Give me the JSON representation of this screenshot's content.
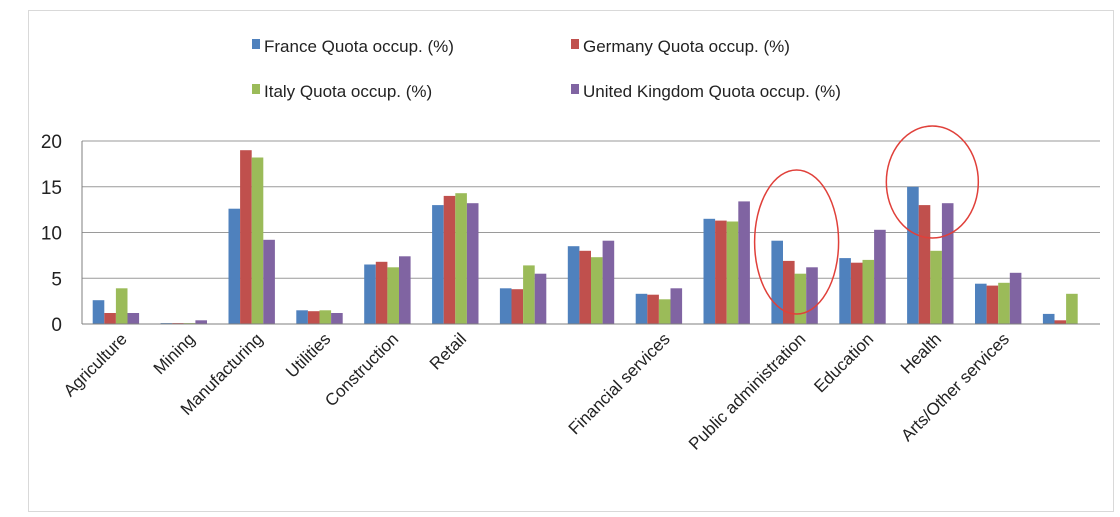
{
  "chart_data": {
    "type": "bar",
    "categories": [
      "Agriculture",
      "Mining",
      "Manufacturing",
      "Utilities",
      "Construction",
      "Retail",
      "",
      "",
      "Financial services",
      "",
      "Public administration",
      "Education",
      "Health",
      "Arts/Other services",
      ""
    ],
    "series": [
      {
        "name": "France Quota occup.  (%)",
        "color": "#4f81bd",
        "values": [
          2.6,
          0.1,
          12.6,
          1.5,
          6.5,
          13.0,
          3.9,
          8.5,
          3.3,
          11.5,
          9.1,
          7.2,
          15.0,
          4.4,
          1.1
        ]
      },
      {
        "name": "Germany Quota occup.  (%)",
        "color": "#c0504d",
        "values": [
          1.2,
          0.1,
          19.0,
          1.4,
          6.8,
          14.0,
          3.8,
          8.0,
          3.2,
          11.3,
          6.9,
          6.7,
          13.0,
          4.2,
          0.4
        ]
      },
      {
        "name": "Italy Quota occup.  (%)",
        "color": "#9bbb59",
        "values": [
          3.9,
          0.1,
          18.2,
          1.5,
          6.2,
          14.3,
          6.4,
          7.3,
          2.7,
          11.2,
          5.5,
          7.0,
          8.0,
          4.5,
          3.3
        ]
      },
      {
        "name": "United Kingdom Quota occup.  (%)",
        "color": "#8064a2",
        "values": [
          1.2,
          0.4,
          9.2,
          1.2,
          7.4,
          13.2,
          5.5,
          9.1,
          3.9,
          13.4,
          6.2,
          10.3,
          13.2,
          5.6,
          0.0
        ]
      }
    ],
    "ylim": [
      0,
      20
    ],
    "yticks": [
      0,
      5,
      10,
      15,
      20
    ],
    "grid": true,
    "legend_position": "top",
    "annotations": [
      "red circle around Public administration",
      "red circle around Health"
    ],
    "annotation_color": "#e0403a"
  }
}
